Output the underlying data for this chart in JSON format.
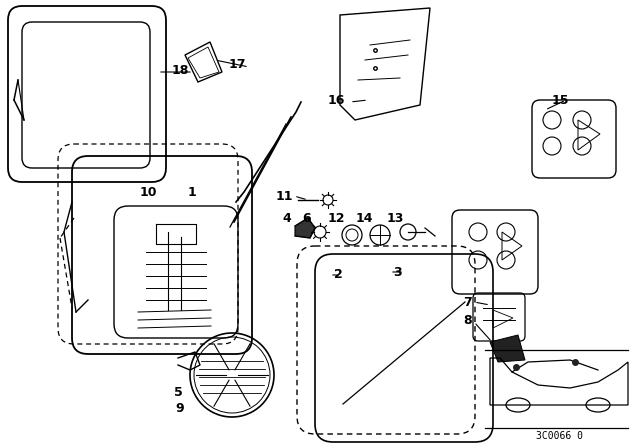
{
  "bg_color": "#ffffff",
  "line_color": "#000000",
  "figsize": [
    6.4,
    4.48
  ],
  "dpi": 100,
  "watermark": "3C0066 0"
}
